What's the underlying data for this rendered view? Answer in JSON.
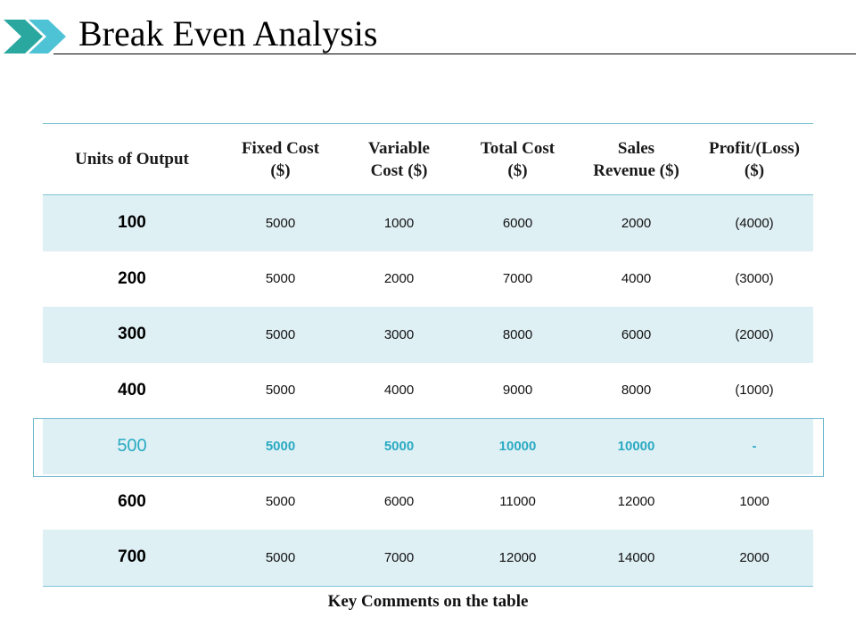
{
  "title": "Break Even Analysis",
  "colors": {
    "accent": "#2aaac2",
    "row_shade": "#dff0f5",
    "rule": "#7fc4d4",
    "arrow_dark": "#2aa8a0",
    "arrow_light": "#4fc3d6"
  },
  "logo": {
    "icon": "double-chevron-arrow-icon"
  },
  "table": {
    "columns": [
      "Units of Output",
      "Fixed Cost\n($)",
      "Variable\nCost ($)",
      "Total Cost\n($)",
      "Sales\nRevenue ($)",
      "Profit/(Loss)\n($)"
    ],
    "rows": [
      [
        "100",
        "5000",
        "1000",
        "6000",
        "2000",
        "(4000)"
      ],
      [
        "200",
        "5000",
        "2000",
        "7000",
        "4000",
        "(3000)"
      ],
      [
        "300",
        "5000",
        "3000",
        "8000",
        "6000",
        "(2000)"
      ],
      [
        "400",
        "5000",
        "4000",
        "9000",
        "8000",
        "(1000)"
      ],
      [
        "500",
        "5000",
        "5000",
        "10000",
        "10000",
        "-"
      ],
      [
        "600",
        "5000",
        "6000",
        "11000",
        "12000",
        "1000"
      ],
      [
        "700",
        "5000",
        "7000",
        "12000",
        "14000",
        "2000"
      ]
    ],
    "highlight_row": 4
  },
  "footer": "Key Comments on the table"
}
